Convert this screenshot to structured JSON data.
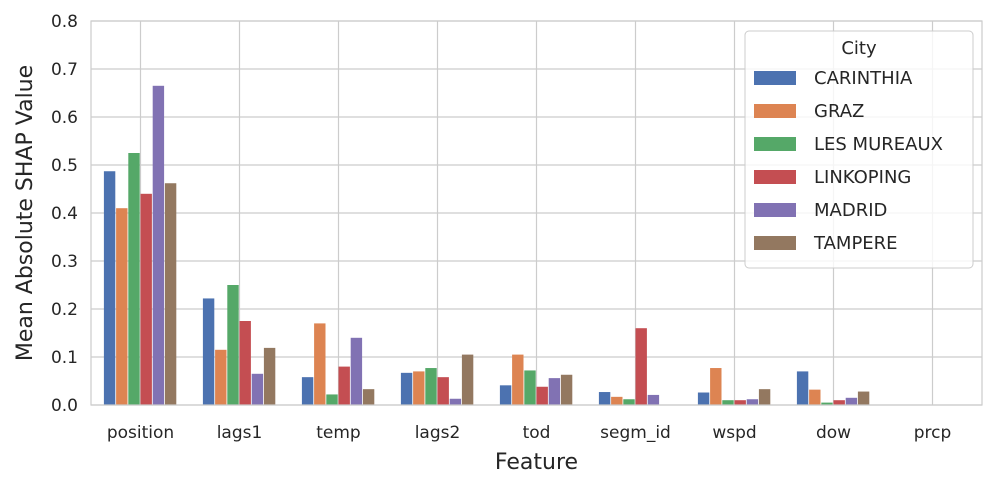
{
  "chart_data": {
    "type": "bar",
    "xlabel": "Feature",
    "ylabel": "Mean Absolute SHAP Value",
    "ylim": [
      0,
      0.8
    ],
    "yticks": [
      "0.0",
      "0.1",
      "0.2",
      "0.3",
      "0.4",
      "0.5",
      "0.6",
      "0.7",
      "0.8"
    ],
    "grid": true,
    "legend": {
      "title": "City",
      "placement": "top-right"
    },
    "categories": [
      "position",
      "lags1",
      "temp",
      "lags2",
      "tod",
      "segm_id",
      "wspd",
      "dow",
      "prcp"
    ],
    "series": [
      {
        "name": "CARINTHIA",
        "color": "#4c72b0",
        "values": [
          0.487,
          0.222,
          0.058,
          0.067,
          0.041,
          0.027,
          0.026,
          0.07,
          0.0
        ]
      },
      {
        "name": "GRAZ",
        "color": "#dd8452",
        "values": [
          0.41,
          0.115,
          0.17,
          0.07,
          0.105,
          0.017,
          0.077,
          0.032,
          0.0
        ]
      },
      {
        "name": "LES MUREAUX",
        "color": "#55a868",
        "values": [
          0.525,
          0.25,
          0.022,
          0.077,
          0.072,
          0.012,
          0.01,
          0.005,
          0.0
        ]
      },
      {
        "name": "LINKOPING",
        "color": "#c44e52",
        "values": [
          0.44,
          0.175,
          0.08,
          0.058,
          0.038,
          0.16,
          0.01,
          0.01,
          0.0
        ]
      },
      {
        "name": "MADRID",
        "color": "#8172b3",
        "values": [
          0.665,
          0.065,
          0.14,
          0.013,
          0.056,
          0.021,
          0.012,
          0.015,
          0.0
        ]
      },
      {
        "name": "TAMPERE",
        "color": "#937860",
        "values": [
          0.462,
          0.119,
          0.033,
          0.105,
          0.063,
          0.0,
          0.033,
          0.028,
          0.0
        ]
      }
    ]
  }
}
